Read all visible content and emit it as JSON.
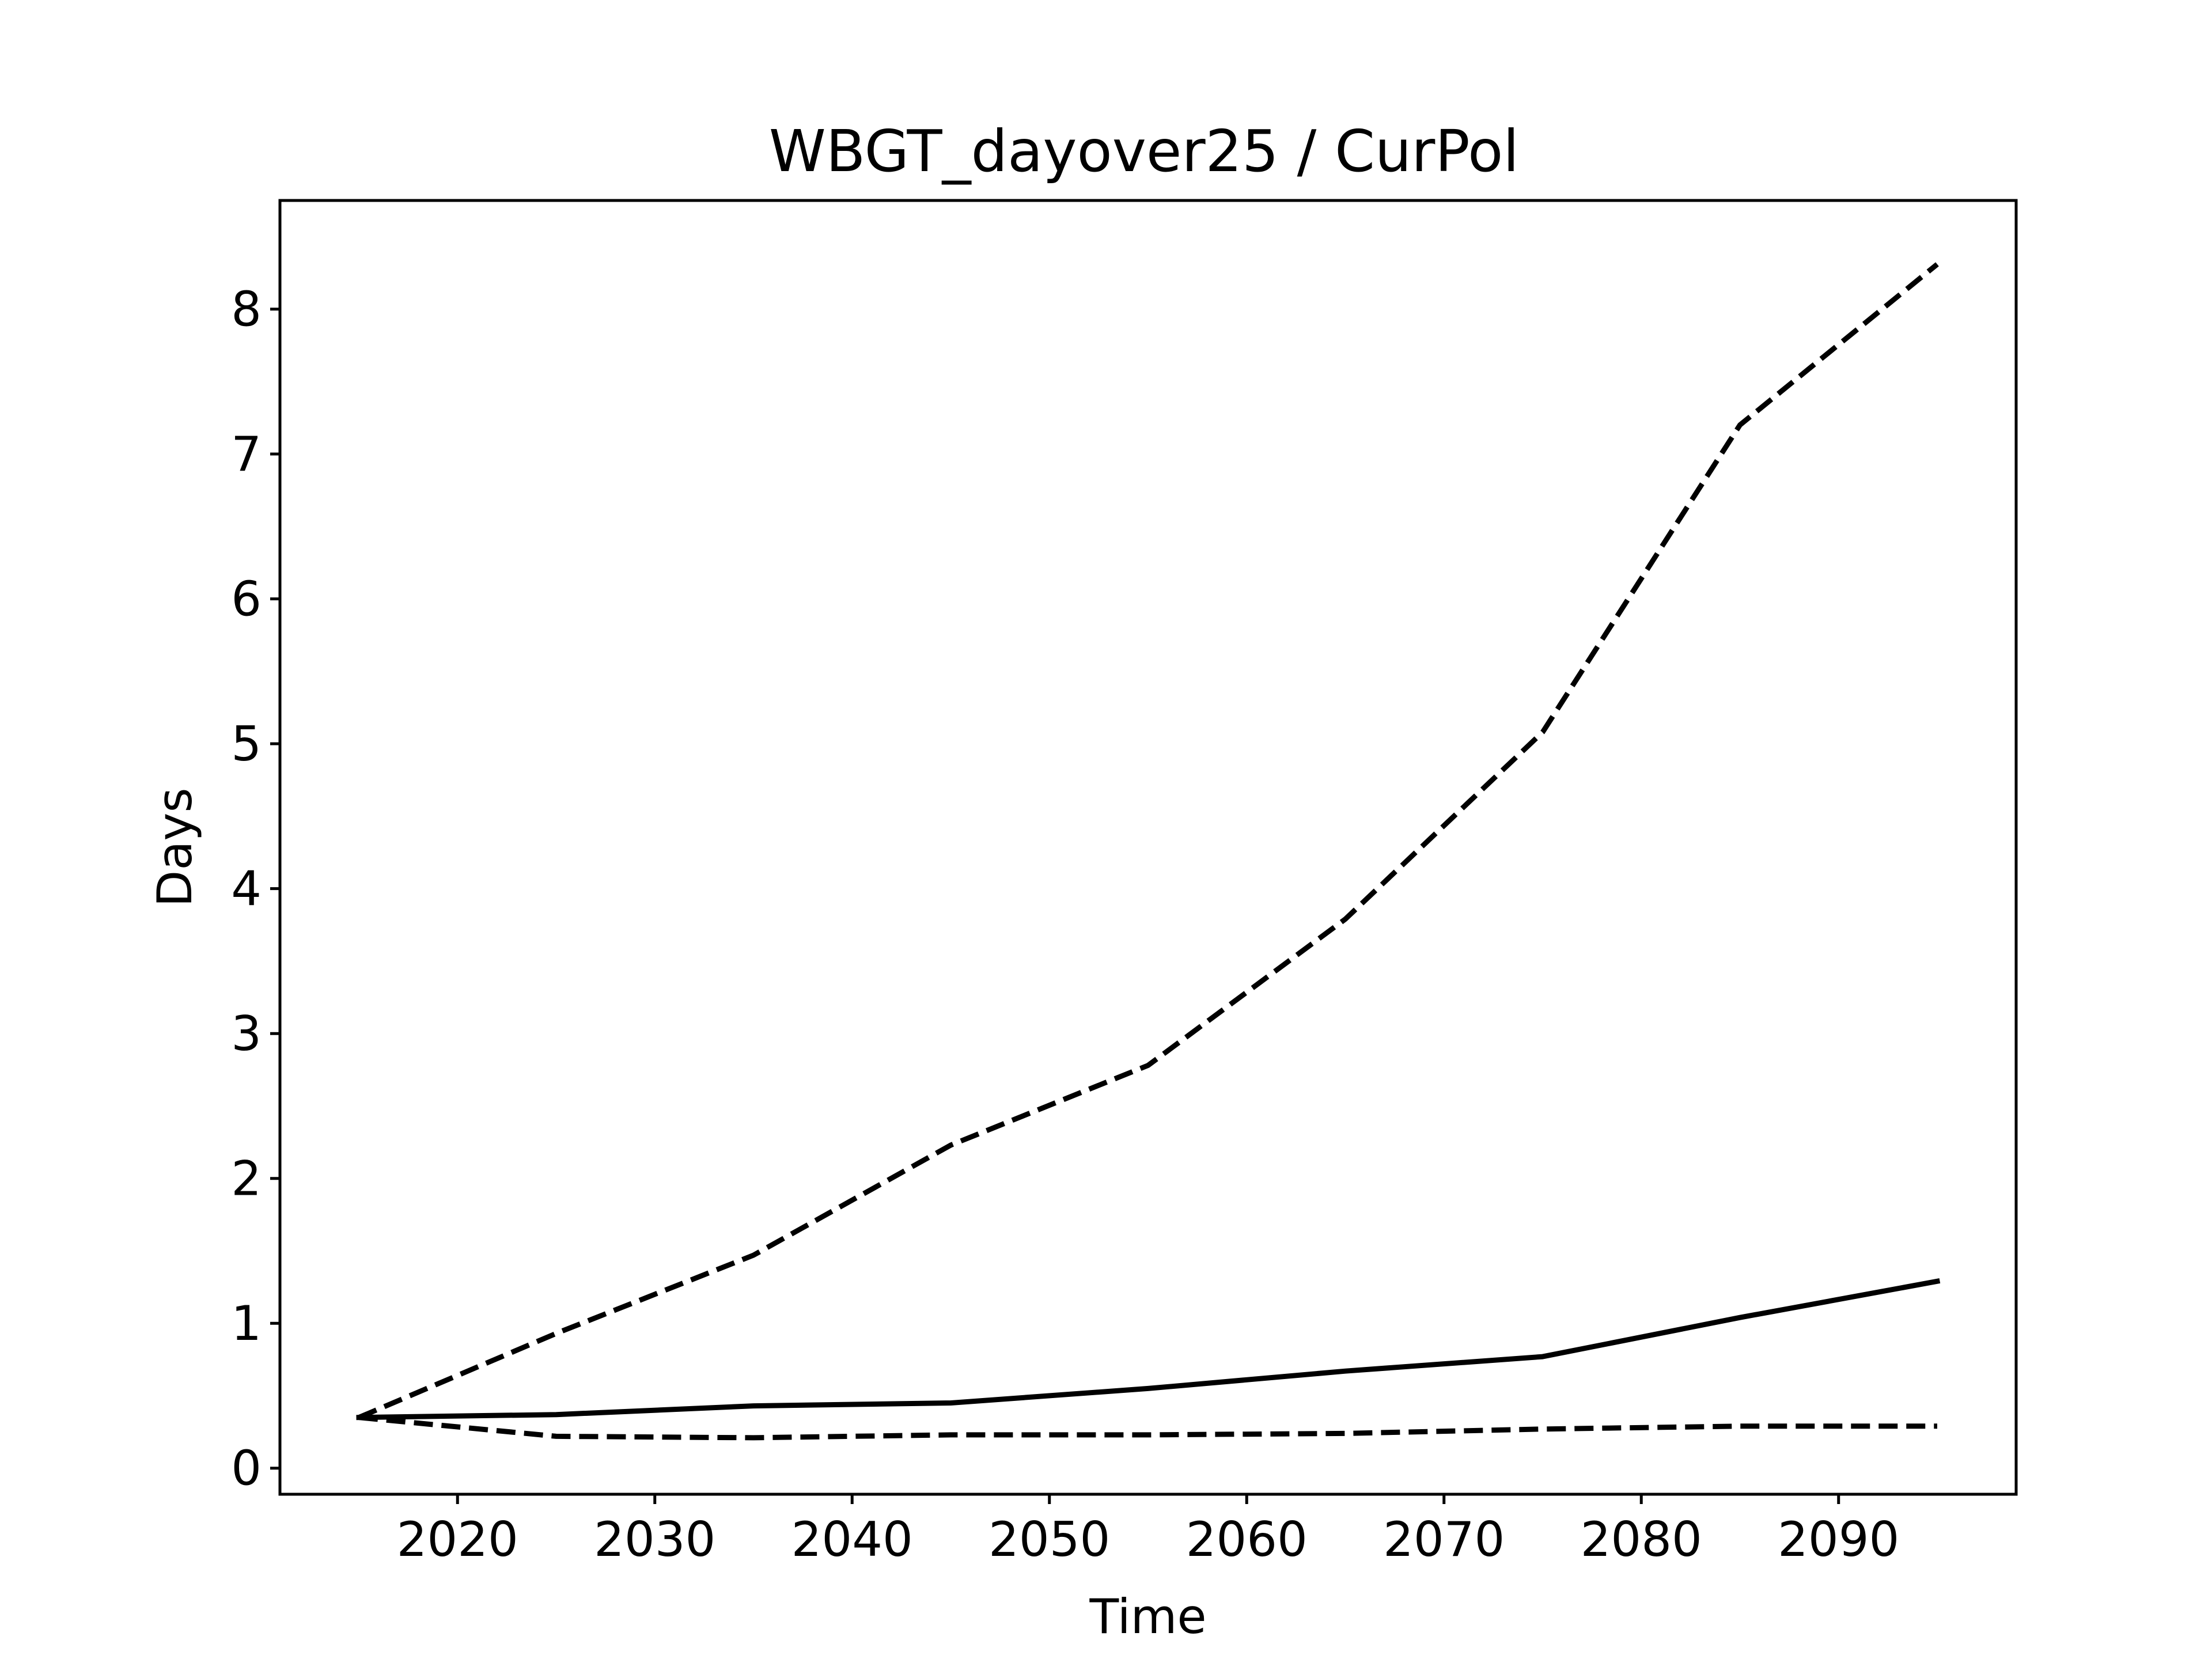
{
  "chart_data": {
    "type": "line",
    "title": "WBGT_dayover25 / CurPol",
    "xlabel": "Time",
    "ylabel": "Days",
    "xlim": [
      2011,
      2099
    ],
    "ylim": [
      -0.18,
      8.75
    ],
    "xticks": [
      2020,
      2030,
      2040,
      2050,
      2060,
      2070,
      2080,
      2090
    ],
    "yticks": [
      0,
      1,
      2,
      3,
      4,
      5,
      6,
      7,
      8
    ],
    "grid": false,
    "legend": "none",
    "x": [
      2015,
      2025,
      2035,
      2045,
      2055,
      2065,
      2075,
      2085,
      2095
    ],
    "series": [
      {
        "style": "dashed",
        "color": "#000000",
        "values": [
          0.35,
          0.93,
          1.47,
          2.23,
          2.78,
          3.79,
          5.08,
          7.2,
          8.31
        ]
      },
      {
        "style": "solid",
        "color": "#000000",
        "values": [
          0.35,
          0.37,
          0.43,
          0.45,
          0.55,
          0.67,
          0.77,
          1.04,
          1.29
        ]
      },
      {
        "style": "dashed",
        "color": "#000000",
        "values": [
          0.35,
          0.22,
          0.21,
          0.23,
          0.23,
          0.24,
          0.27,
          0.29,
          0.29
        ]
      }
    ]
  }
}
